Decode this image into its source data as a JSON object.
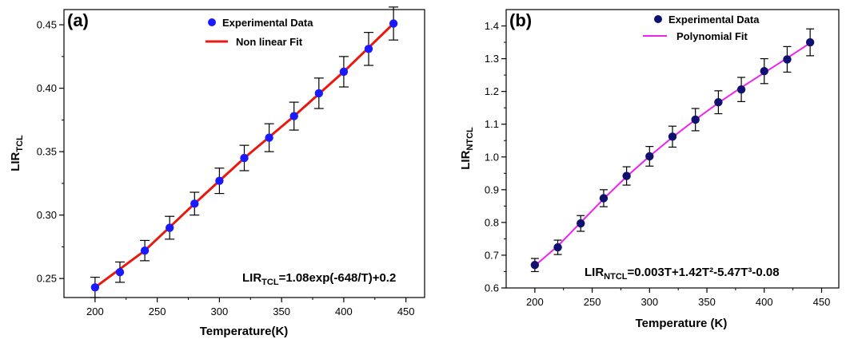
{
  "chart_data": [
    {
      "type": "scatter",
      "panel_label": "(a)",
      "xlabel": "Temperature(K)",
      "ylabel": {
        "main": "LIR",
        "sub": "TCL"
      },
      "xlim": [
        175,
        465
      ],
      "ylim": [
        0.235,
        0.462
      ],
      "xticks": [
        200,
        250,
        300,
        350,
        400,
        450
      ],
      "yticks": [
        0.25,
        0.3,
        0.35,
        0.4,
        0.45
      ],
      "ytick_labels": [
        "0.25",
        "0.30",
        "0.35",
        "0.40",
        "0.45"
      ],
      "x": [
        200,
        220,
        240,
        260,
        280,
        300,
        320,
        340,
        360,
        380,
        400,
        420,
        440
      ],
      "y": [
        0.243,
        0.255,
        0.272,
        0.29,
        0.309,
        0.327,
        0.345,
        0.361,
        0.378,
        0.396,
        0.413,
        0.431,
        0.451
      ],
      "yerr": [
        0.008,
        0.008,
        0.008,
        0.009,
        0.009,
        0.01,
        0.01,
        0.011,
        0.011,
        0.012,
        0.012,
        0.013,
        0.013
      ],
      "fit": {
        "x": [
          200,
          240,
          280,
          320,
          360,
          400,
          440
        ],
        "y": [
          0.243,
          0.272,
          0.309,
          0.345,
          0.378,
          0.413,
          0.451
        ]
      },
      "legend": {
        "placement": "top-right",
        "data_label": "Experimental Data",
        "fit_label": "Non linear Fit"
      },
      "equation": {
        "main": "LIR",
        "sub": "TCL",
        "rest": "=1.08exp(-648/T)+0.2"
      },
      "colors": {
        "marker": "#1a1aff",
        "fit": "#e8190f"
      },
      "grid": false
    },
    {
      "type": "scatter",
      "panel_label": "(b)",
      "xlabel": "Temperature (K)",
      "ylabel": {
        "main": "LIR",
        "sub": "NTCL"
      },
      "xlim": [
        175,
        465
      ],
      "ylim": [
        0.6,
        1.45
      ],
      "xticks": [
        200,
        250,
        300,
        350,
        400,
        450
      ],
      "yticks": [
        0.6,
        0.7,
        0.8,
        0.9,
        1.0,
        1.1,
        1.2,
        1.3,
        1.4
      ],
      "ytick_labels": [
        "0.6",
        "0.7",
        "0.8",
        "0.9",
        "1.0",
        "1.1",
        "1.2",
        "1.3",
        "1.4"
      ],
      "x": [
        200,
        220,
        240,
        260,
        280,
        300,
        320,
        340,
        360,
        380,
        400,
        420,
        440
      ],
      "y": [
        0.67,
        0.724,
        0.797,
        0.874,
        0.942,
        1.002,
        1.062,
        1.114,
        1.167,
        1.206,
        1.262,
        1.298,
        1.35
      ],
      "yerr": [
        0.02,
        0.022,
        0.024,
        0.026,
        0.028,
        0.03,
        0.032,
        0.034,
        0.035,
        0.037,
        0.038,
        0.039,
        0.041
      ],
      "fit": {
        "x": [
          200,
          220,
          240,
          260,
          280,
          300,
          320,
          340,
          360,
          380,
          400,
          420,
          440
        ],
        "y": [
          0.668,
          0.728,
          0.8,
          0.872,
          0.94,
          1.002,
          1.06,
          1.114,
          1.165,
          1.212,
          1.257,
          1.302,
          1.348
        ]
      },
      "legend": {
        "placement": "top-right",
        "data_label": "Experimental Data",
        "fit_label": "Polynomial Fit"
      },
      "equation": {
        "main": "LIR",
        "sub": "NTCL",
        "rest": "=0.003T+1.42T²-5.47T³-0.08"
      },
      "colors": {
        "marker": "#101070",
        "fit": "#ee22ee"
      },
      "grid": false
    }
  ]
}
